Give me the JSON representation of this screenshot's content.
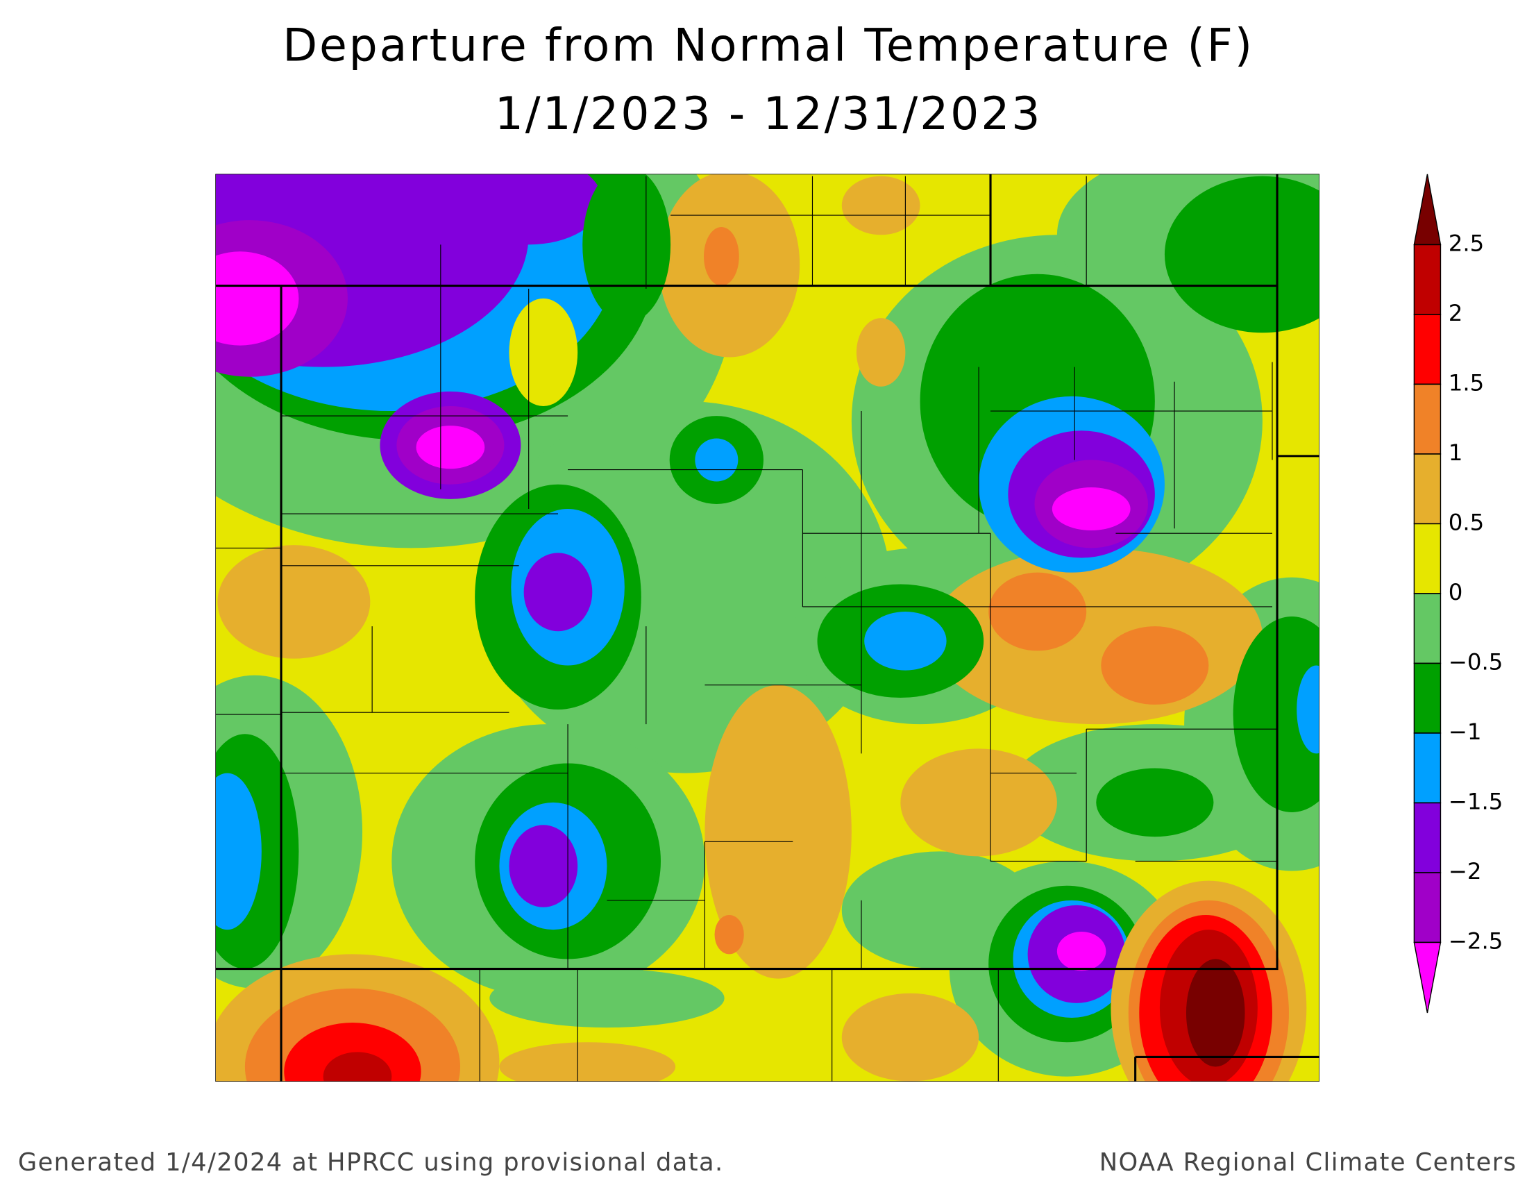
{
  "header": {
    "title": "Departure from Normal Temperature (F)",
    "subtitle": "1/1/2023 - 12/31/2023"
  },
  "legend": {
    "levels": [
      2.5,
      2,
      1.5,
      1,
      0.5,
      0,
      {
        "value": -0.5,
        "label": "−0.5"
      },
      {
        "value": -1,
        "label": "−1"
      },
      {
        "value": -1.5,
        "label": "−1.5"
      },
      {
        "value": -2,
        "label": "−2"
      },
      {
        "value": -2.5,
        "label": "−2.5"
      }
    ],
    "colors": [
      "#780000",
      "#c00000",
      "#ff0000",
      "#f08228",
      "#e6af2d",
      "#e6e600",
      "#64c864",
      "#00a000",
      "#00a0ff",
      "#8200dc",
      "#a000c8",
      "#ff00ff"
    ]
  },
  "footer": {
    "left": "Generated 1/4/2024 at HPRCC using provisional data.",
    "right": "NOAA Regional Climate Centers"
  }
}
